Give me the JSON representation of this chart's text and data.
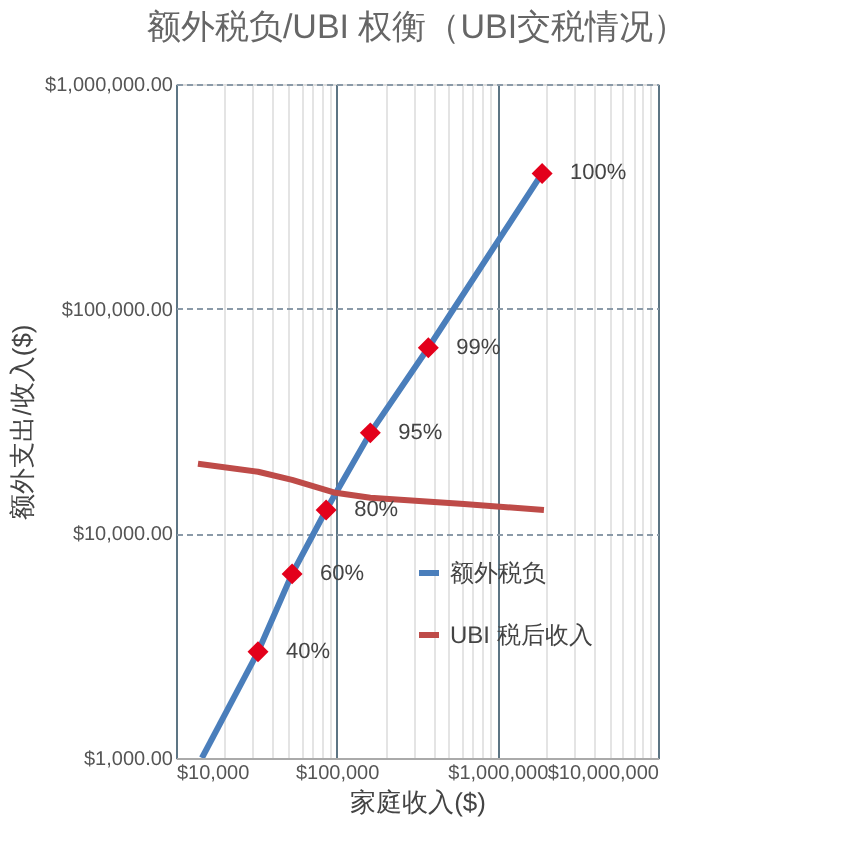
{
  "chart_data": {
    "type": "line",
    "title": "额外税负/UBI 权衡（UBI交税情况）",
    "xlabel": "家庭收入($)",
    "ylabel": "额外支出/收入($)",
    "log": "xy",
    "grid": true,
    "legend": "right",
    "line_style": "solid",
    "xlim": [
      10000,
      10000000
    ],
    "ylim": [
      1000,
      1000000
    ],
    "xticks": [
      {
        "value": 10000,
        "label": "$10,000"
      },
      {
        "value": 20000,
        "label": null
      },
      {
        "value": 30000,
        "label": null
      },
      {
        "value": 40000,
        "label": null
      },
      {
        "value": 50000,
        "label": null
      },
      {
        "value": 60000,
        "label": null
      },
      {
        "value": 70000,
        "label": null
      },
      {
        "value": 80000,
        "label": null
      },
      {
        "value": 90000,
        "label": null
      },
      {
        "value": 100000,
        "label": "$100,000"
      },
      {
        "value": 200000,
        "label": null
      },
      {
        "value": 300000,
        "label": null
      },
      {
        "value": 400000,
        "label": null
      },
      {
        "value": 500000,
        "label": null
      },
      {
        "value": 600000,
        "label": null
      },
      {
        "value": 700000,
        "label": null
      },
      {
        "value": 800000,
        "label": null
      },
      {
        "value": 900000,
        "label": null
      },
      {
        "value": 1000000,
        "label": "$1,000,000"
      },
      {
        "value": 2000000,
        "label": null
      },
      {
        "value": 3000000,
        "label": null
      },
      {
        "value": 4000000,
        "label": null
      },
      {
        "value": 5000000,
        "label": null
      },
      {
        "value": 6000000,
        "label": null
      },
      {
        "value": 7000000,
        "label": null
      },
      {
        "value": 8000000,
        "label": null
      },
      {
        "value": 9000000,
        "label": null
      },
      {
        "value": 10000000,
        "label": "$10,000,000"
      }
    ],
    "yticks": [
      {
        "value": 1000,
        "label": "$1,000.00"
      },
      {
        "value": 10000,
        "label": "$10,000.00"
      },
      {
        "value": 100000,
        "label": "$100,000.00"
      },
      {
        "value": 1000000,
        "label": "$1,000,000.00"
      }
    ],
    "series": [
      {
        "name": "额外税负",
        "color": "#4a7ebb",
        "marker": "diamond",
        "x": [
          32400,
          52800,
          86000,
          162000,
          372000,
          1900000
        ],
        "values": [
          2970,
          6600,
          12700,
          28000,
          67000,
          400000
        ]
      },
      {
        "color": "#4a7ebb",
        "marker": "none",
        "x": [
          14500,
          32400
        ],
        "values": [
          1000,
          2970
        ]
      },
      {
        "name": "UBI 税后收入",
        "color": "#be4b48",
        "marker": "none",
        "x": [
          13700,
          32400,
          52800,
          96000,
          162000,
          620000,
          1950000
        ],
        "values": [
          20400,
          18800,
          17300,
          15200,
          14400,
          13500,
          12700
        ]
      }
    ],
    "annotations": [
      {
        "text": "40%",
        "x": 32400,
        "y": 2970
      },
      {
        "text": "60%",
        "x": 52800,
        "y": 6600
      },
      {
        "text": "80%",
        "x": 86000,
        "y": 12700
      },
      {
        "text": "95%",
        "x": 162000,
        "y": 28000
      },
      {
        "text": "99%",
        "x": 372000,
        "y": 67000
      },
      {
        "text": "100%",
        "x": 1900000,
        "y": 400000
      }
    ]
  }
}
